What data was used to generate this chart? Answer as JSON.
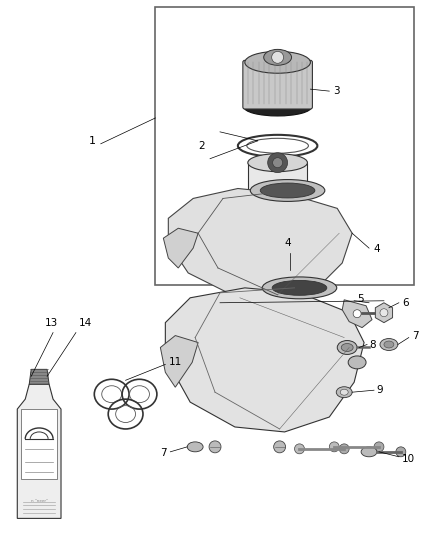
{
  "background_color": "#ffffff",
  "figsize": [
    4.38,
    5.33
  ],
  "dpi": 100,
  "line_color": "#000000",
  "gray_light": "#d8d8d8",
  "gray_mid": "#aaaaaa",
  "gray_dark": "#555555",
  "box_color": "#666666"
}
